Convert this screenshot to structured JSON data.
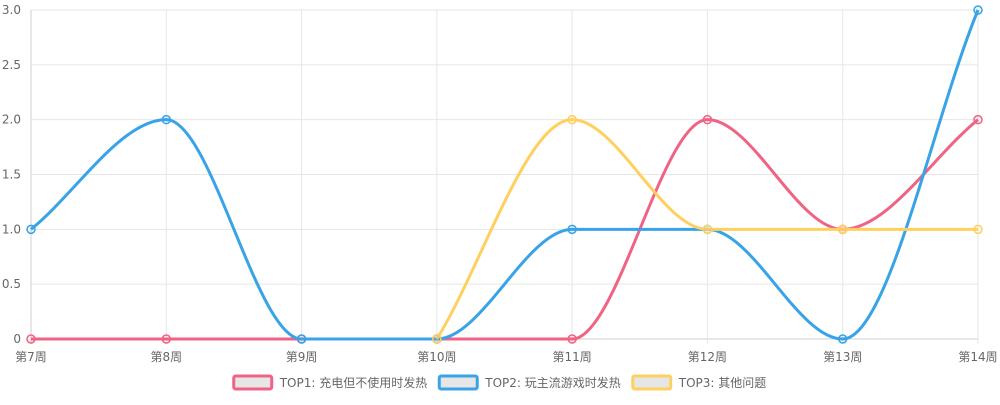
{
  "chart_data": {
    "type": "line",
    "categories": [
      "第7周",
      "第8周",
      "第9周",
      "第10周",
      "第11周",
      "第12周",
      "第13周",
      "第14周"
    ],
    "series": [
      {
        "name": "TOP1: 充电但不使用时发热",
        "color": "#f06384",
        "values": [
          0,
          0,
          0,
          0,
          0,
          2,
          1,
          2
        ]
      },
      {
        "name": "TOP2: 玩主流游戏时发热",
        "color": "#38a3e6",
        "values": [
          1,
          2,
          0,
          0,
          1,
          1,
          0,
          3
        ]
      },
      {
        "name": "TOP3: 其他问题",
        "color": "#ffd060",
        "values": [
          null,
          null,
          null,
          0,
          2,
          1,
          1,
          1
        ]
      }
    ],
    "ylim": [
      0,
      3
    ],
    "yticks": [
      "0",
      "0.5",
      "1.0",
      "1.5",
      "2.0",
      "2.5",
      "3.0"
    ],
    "legend_position": "bottom",
    "grid": true
  }
}
